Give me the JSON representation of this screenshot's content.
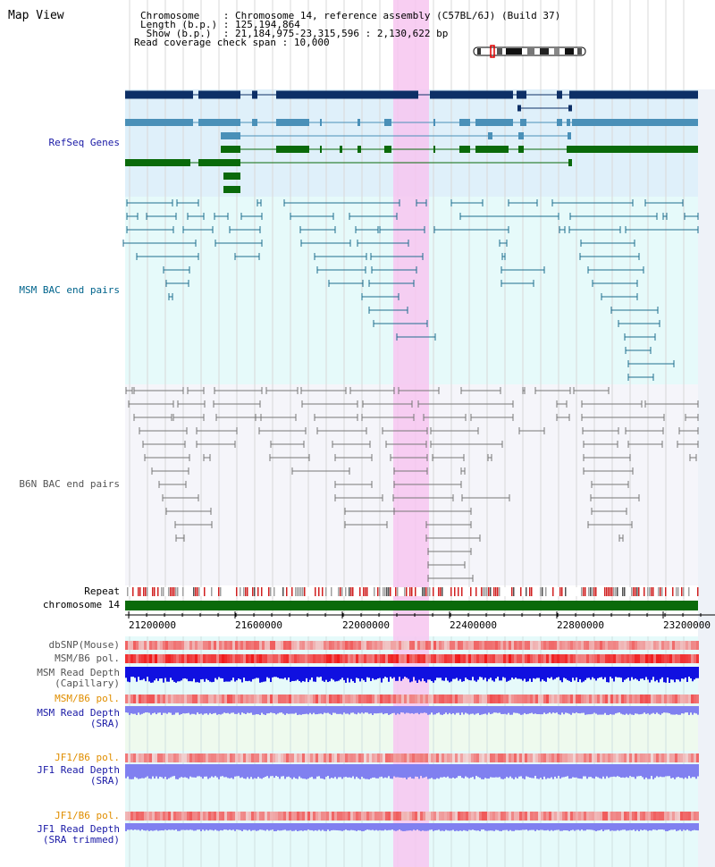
{
  "app": {
    "title": "Map View"
  },
  "header": {
    "chromosome_label": "Chromosome    ",
    "chromosome_value": "Chromosome 14, reference assembly (C57BL/6J) (Build 37)",
    "length_label": "Length (b.p.) ",
    "length_value": "125,194,864",
    "show_label": " Show (b.p.)  ",
    "show_value": "21,184,975-23,315,596 : 2,130,622 bp",
    "coverage_label": "Read coverage check span",
    "coverage_value": "10,000"
  },
  "tracks": {
    "refseq": "RefSeq Genes",
    "msm_bac": "MSM BAC end pairs",
    "b6n_bac": "B6N BAC end pairs",
    "repeat": "Repeat",
    "chromosome": "chromosome 14",
    "dbsnp": "dbSNP(Mouse)",
    "msm_b6_pol_1": "MSM/B6 pol.",
    "msm_read_depth_cap_1": "MSM Read Depth",
    "msm_read_depth_cap_2": "(Capillary)",
    "msm_b6_pol_2": "MSM/B6 pol.",
    "msm_read_depth_sra_1": "MSM Read Depth",
    "msm_read_depth_sra_2": "(SRA)",
    "jf1_b6_pol_1": "JF1/B6 pol.",
    "jf1_read_depth_sra_1": "JF1 Read Depth",
    "jf1_read_depth_sra_2": "(SRA)",
    "jf1_b6_pol_2": "JF1/B6 pol.",
    "jf1_read_depth_trim_1": "JF1 Read Depth",
    "jf1_read_depth_trim_2": "(SRA trimmed)"
  },
  "axis": {
    "ticks": [
      "21200000",
      "21600000",
      "22000000",
      "22400000",
      "22800000",
      "23200000"
    ]
  },
  "colors": {
    "refseq_dark": "#0d2f66",
    "refseq_mid": "#4a90b8",
    "refseq_green": "#0a6a0a",
    "msm_pair": "#1e6e8e",
    "b6n_pair": "#777777",
    "highlight": "#f7c6f0",
    "chromosome_bar": "#0a6a0a",
    "depth_blue": "#1010e0",
    "depth_light": "#8080f0"
  }
}
